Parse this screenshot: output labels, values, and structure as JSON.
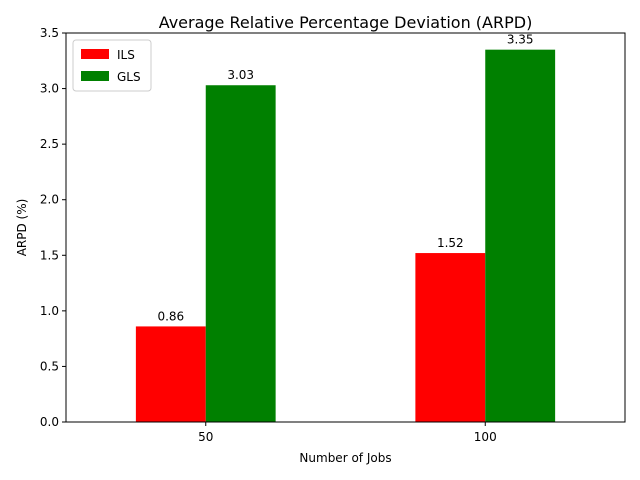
{
  "chart_data": {
    "type": "bar",
    "title": "Average Relative Percentage Deviation (ARPD)",
    "xlabel": "Number of Jobs",
    "ylabel": "ARPD (%)",
    "categories": [
      "50",
      "100"
    ],
    "series": [
      {
        "name": "ILS",
        "color": "#ff0000",
        "values": [
          0.86,
          1.52
        ]
      },
      {
        "name": "GLS",
        "color": "#008000",
        "values": [
          3.03,
          3.35
        ]
      }
    ],
    "ylim": [
      0,
      3.5
    ],
    "yticks": [
      "0.0",
      "0.5",
      "1.0",
      "1.5",
      "2.0",
      "2.5",
      "3.0",
      "3.5"
    ],
    "data_labels": [
      [
        "0.86",
        "1.52"
      ],
      [
        "3.03",
        "3.35"
      ]
    ],
    "legend_position": "upper-left",
    "grid": false
  }
}
